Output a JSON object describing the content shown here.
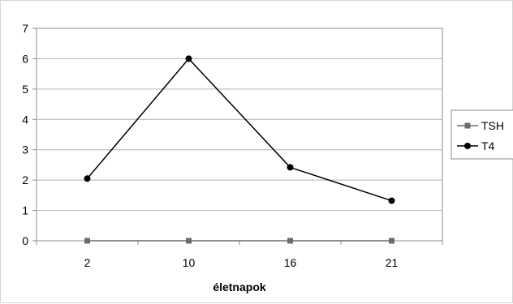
{
  "chart_data": {
    "type": "line",
    "title": "",
    "xlabel": "életnapok",
    "ylabel": "",
    "categories": [
      "2",
      "10",
      "16",
      "21"
    ],
    "ylim": [
      0,
      7
    ],
    "yticks": [
      "0",
      "1",
      "2",
      "3",
      "4",
      "5",
      "6",
      "7"
    ],
    "grid": "horizontal",
    "legend_position": "right",
    "series": [
      {
        "name": "TSH",
        "marker": "square",
        "color": "#6b6b6b",
        "values": [
          0,
          0,
          0,
          0
        ]
      },
      {
        "name": "T4",
        "marker": "circle",
        "color": "#000000",
        "values": [
          2.05,
          6.0,
          2.42,
          1.32
        ]
      }
    ]
  }
}
